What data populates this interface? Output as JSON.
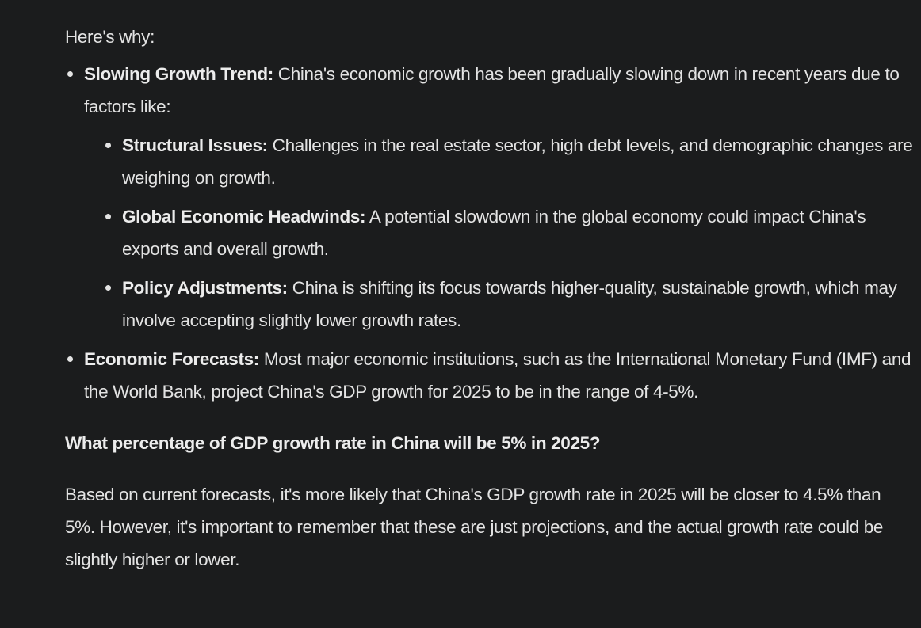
{
  "intro": "Here's why:",
  "points": [
    {
      "title": "Slowing Growth Trend:",
      "text": " China's economic growth has been gradually slowing down in recent years due to factors like:",
      "sub": [
        {
          "title": "Structural Issues:",
          "text": " Challenges in the real estate sector, high debt levels, and demographic changes are weighing on growth."
        },
        {
          "title": "Global Economic Headwinds:",
          "text": " A potential slowdown in the global economy could impact China's exports and overall growth."
        },
        {
          "title": "Policy Adjustments:",
          "text": " China is shifting its focus towards higher-quality, sustainable growth, which may involve accepting slightly lower growth rates."
        }
      ]
    },
    {
      "title": "Economic Forecasts:",
      "text": " Most major economic institutions, such as the International Monetary Fund (IMF) and the World Bank, project China's GDP growth for 2025 to be in the range of 4-5%."
    }
  ],
  "question": "What percentage of GDP growth rate in China will be 5% in 2025?",
  "answer": "Based on current forecasts, it's more likely that China's GDP growth rate in 2025 will be closer to 4.5% than 5%. However, it's important to remember that these are just projections, and the actual growth rate could be slightly higher or lower."
}
